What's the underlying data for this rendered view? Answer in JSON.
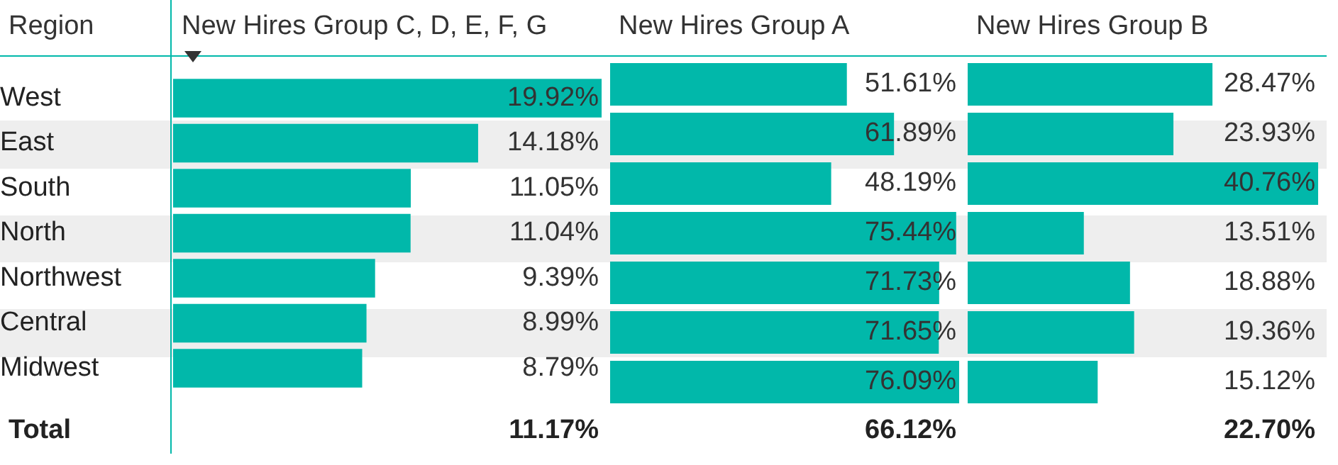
{
  "chart_data": [
    {
      "type": "bar",
      "orientation": "horizontal",
      "title": "New Hires Group C, D, E, F, G",
      "ylabel": "Region",
      "categories": [
        "West",
        "East",
        "South",
        "North",
        "Northwest",
        "Central",
        "Midwest"
      ],
      "values": [
        19.92,
        14.18,
        11.05,
        11.04,
        9.39,
        8.99,
        8.79
      ],
      "value_labels": [
        "19.92%",
        "14.18%",
        "11.05%",
        "11.04%",
        "9.39%",
        "8.99%",
        "8.79%"
      ],
      "color": "#01b8aa",
      "xlim": [
        0,
        19.92
      ],
      "tick_labels": "y",
      "annotations": [
        "Total",
        "11.17%"
      ]
    },
    {
      "type": "bar",
      "orientation": "horizontal",
      "title": "New Hires Group A",
      "categories": [
        null,
        null,
        null,
        null,
        null,
        null,
        null
      ],
      "values": [
        51.61,
        61.89,
        48.19,
        75.44,
        71.73,
        71.65,
        76.09
      ],
      "value_labels": [
        "51.61%",
        "61.89%",
        "48.19%",
        "75.44%",
        "71.73%",
        "71.65%",
        "76.09%"
      ],
      "color": "#01b8aa",
      "xlim": [
        0,
        76.09
      ],
      "tick_labels": false,
      "annotations": [
        "66.12%"
      ]
    },
    {
      "type": "bar",
      "orientation": "horizontal",
      "title": "New Hires Group B",
      "categories": [
        null,
        null,
        null,
        null,
        null,
        null,
        null
      ],
      "values": [
        28.47,
        23.93,
        40.76,
        13.51,
        18.88,
        19.36,
        15.12
      ],
      "value_labels": [
        "28.47%",
        "23.93%",
        "40.76%",
        "13.51%",
        "18.88%",
        "19.36%",
        "15.12%"
      ],
      "color": "#01b8aa",
      "xlim": [
        0,
        40.76
      ],
      "tick_labels": false,
      "annotations": [
        "22.70%"
      ]
    }
  ]
}
